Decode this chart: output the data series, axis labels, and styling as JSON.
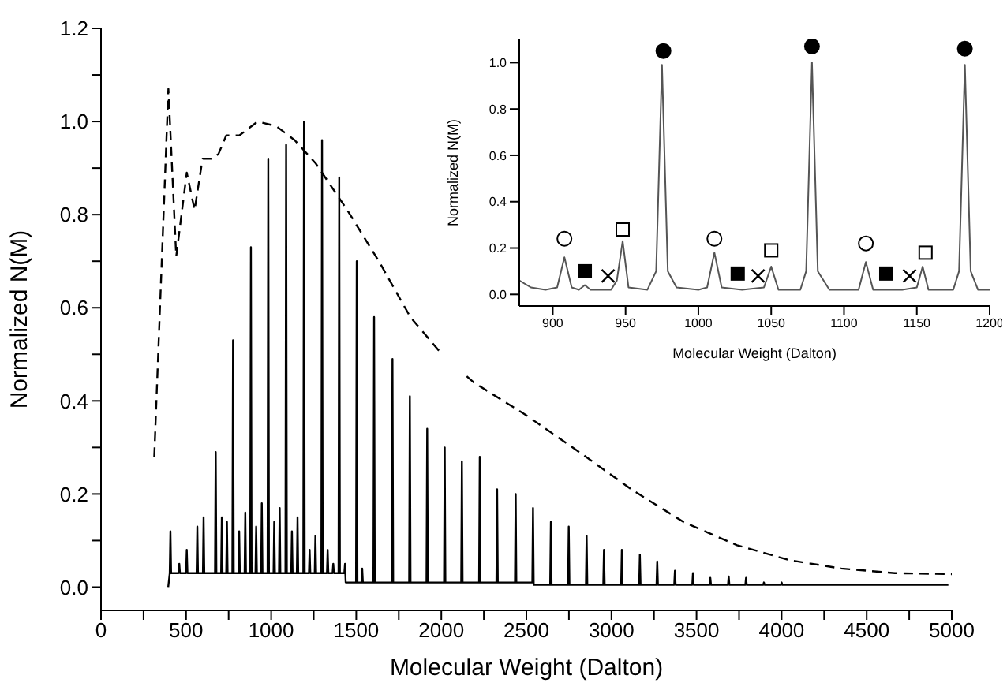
{
  "chart_data": [
    {
      "type": "line",
      "xlabel": "Molecular Weight (Dalton)",
      "ylabel": "Normalized N(M)",
      "xlim": [
        0,
        5000
      ],
      "xticks": [
        0,
        {
          "value": 250,
          "label": null
        },
        500,
        {
          "value": 750,
          "label": null
        },
        1000,
        {
          "value": 1250,
          "label": null
        },
        1500,
        {
          "value": 1750,
          "label": null
        },
        2000,
        {
          "value": 2250,
          "label": null
        },
        2500,
        {
          "value": 2750,
          "label": null
        },
        3000,
        {
          "value": 3250,
          "label": null
        },
        3500,
        {
          "value": 3750,
          "label": null
        },
        4000,
        {
          "value": 4250,
          "label": null
        },
        4500,
        {
          "value": 4750,
          "label": null
        },
        5000
      ],
      "ylim": [
        -0.05,
        1.2
      ],
      "yticks": [
        {
          "value": 0,
          "label": "0.0"
        },
        {
          "value": 0.1,
          "label": null
        },
        {
          "value": 0.2,
          "label": "0.2"
        },
        {
          "value": 0.3,
          "label": null
        },
        {
          "value": 0.4,
          "label": "0.4"
        },
        {
          "value": 0.5,
          "label": null
        },
        {
          "value": 0.6,
          "label": "0.6"
        },
        {
          "value": 0.7,
          "label": null
        },
        {
          "value": 0.8,
          "label": "0.8"
        },
        {
          "value": 0.9,
          "label": null
        },
        {
          "value": 1.0,
          "label": "1.0"
        },
        {
          "value": 1.1,
          "label": null
        },
        {
          "value": 1.2,
          "label": "1.2"
        }
      ],
      "series": [
        {
          "color": "#000000",
          "x": [
            395,
            404,
            408,
            412,
            456,
            460,
            464,
            500,
            504,
            508,
            562,
            566,
            570,
            599,
            603,
            607,
            670,
            674,
            678,
            706,
            710,
            714,
            736,
            740,
            744,
            772,
            776,
            780,
            808,
            812,
            816,
            844,
            848,
            852,
            877,
            881,
            885,
            908,
            912,
            916,
            941,
            945,
            949,
            979,
            983,
            987,
            1014,
            1018,
            1022,
            1046,
            1050,
            1054,
            1084,
            1088,
            1092,
            1118,
            1122,
            1126,
            1151,
            1155,
            1159,
            1189,
            1193,
            1197,
            1222,
            1226,
            1230,
            1256,
            1260,
            1264,
            1295,
            1299,
            1303,
            1328,
            1332,
            1336,
            1361,
            1365,
            1369,
            1396,
            1400,
            1404,
            1430,
            1434,
            1438,
            1499,
            1503,
            1507,
            1531,
            1535,
            1539,
            1601,
            1605,
            1609,
            1709,
            1713,
            1717,
            1811,
            1815,
            1819,
            1913,
            1917,
            1921,
            2016,
            2020,
            2024,
            2117,
            2121,
            2125,
            2222,
            2226,
            2230,
            2324,
            2328,
            2332,
            2433,
            2437,
            2441,
            2535,
            2539,
            2543,
            2640,
            2644,
            2648,
            2745,
            2749,
            2753,
            2850,
            2854,
            2858,
            2952,
            2956,
            2960,
            3057,
            3061,
            3065,
            3163,
            3167,
            3171,
            3265,
            3269,
            3273,
            3369,
            3373,
            3377,
            3475,
            3479,
            3483,
            3577,
            3581,
            3585,
            3685,
            3689,
            3693,
            3787,
            3791,
            3795,
            3892,
            3896,
            3900,
            3996,
            4000,
            4004,
            4980
          ],
          "values": [
            0.0,
            0.03,
            0.12,
            0.03,
            0.03,
            0.05,
            0.03,
            0.03,
            0.08,
            0.03,
            0.03,
            0.13,
            0.03,
            0.03,
            0.15,
            0.03,
            0.03,
            0.29,
            0.03,
            0.03,
            0.15,
            0.03,
            0.03,
            0.14,
            0.03,
            0.03,
            0.53,
            0.03,
            0.03,
            0.12,
            0.03,
            0.03,
            0.16,
            0.03,
            0.03,
            0.73,
            0.03,
            0.03,
            0.13,
            0.03,
            0.03,
            0.18,
            0.03,
            0.03,
            0.92,
            0.03,
            0.03,
            0.14,
            0.03,
            0.03,
            0.17,
            0.03,
            0.03,
            0.95,
            0.03,
            0.03,
            0.12,
            0.03,
            0.03,
            0.15,
            0.03,
            0.03,
            1.0,
            0.03,
            0.03,
            0.08,
            0.03,
            0.03,
            0.11,
            0.03,
            0.03,
            0.96,
            0.03,
            0.03,
            0.08,
            0.03,
            0.03,
            0.05,
            0.03,
            0.03,
            0.88,
            0.03,
            0.03,
            0.05,
            0.01,
            0.01,
            0.7,
            0.01,
            0.01,
            0.04,
            0.01,
            0.01,
            0.58,
            0.01,
            0.01,
            0.49,
            0.01,
            0.01,
            0.41,
            0.01,
            0.01,
            0.34,
            0.01,
            0.01,
            0.3,
            0.01,
            0.01,
            0.27,
            0.01,
            0.01,
            0.28,
            0.01,
            0.01,
            0.21,
            0.01,
            0.01,
            0.2,
            0.01,
            0.01,
            0.17,
            0.005,
            0.005,
            0.14,
            0.005,
            0.005,
            0.13,
            0.005,
            0.005,
            0.11,
            0.005,
            0.005,
            0.08,
            0.005,
            0.005,
            0.08,
            0.005,
            0.005,
            0.07,
            0.005,
            0.005,
            0.055,
            0.005,
            0.005,
            0.035,
            0.005,
            0.005,
            0.03,
            0.005,
            0.005,
            0.02,
            0.005,
            0.005,
            0.023,
            0.005,
            0.005,
            0.02,
            0.005,
            0.005,
            0.01,
            0.005,
            0.005,
            0.01,
            0.005,
            0.005
          ]
        },
        {
          "color": "#000000",
          "line_style": "dashed",
          "x": [
            313,
            396,
            442,
            504,
            550,
            597,
            649,
            690,
            736,
            813,
            921,
            1030,
            1138,
            1262,
            1447,
            1633,
            1818,
            2004,
            2189,
            2495,
            2811,
            3117,
            3423,
            3738,
            4045,
            4351,
            4666,
            5000
          ],
          "values": [
            0.28,
            1.07,
            0.71,
            0.89,
            0.81,
            0.92,
            0.92,
            0.93,
            0.97,
            0.97,
            1.0,
            0.99,
            0.96,
            0.91,
            0.81,
            0.7,
            0.58,
            0.5,
            0.44,
            0.37,
            0.29,
            0.21,
            0.14,
            0.09,
            0.058,
            0.04,
            0.03,
            0.028
          ]
        }
      ]
    },
    {
      "type": "line",
      "xlabel": "Molecular Weight (Dalton)",
      "ylabel": "Normalized N(M)",
      "xlim": [
        877,
        1200
      ],
      "xticks": [
        900,
        950,
        1000,
        1050,
        1100,
        1150,
        1200
      ],
      "ylim": [
        -0.05,
        1.1
      ],
      "yticks": [
        {
          "value": 0,
          "label": "0.0"
        },
        {
          "value": 0.2,
          "label": "0.2"
        },
        {
          "value": 0.4,
          "label": "0.4"
        },
        {
          "value": 0.6,
          "label": "0.6"
        },
        {
          "value": 0.8,
          "label": "0.8"
        },
        {
          "value": 1.0,
          "label": "1.0"
        }
      ],
      "series": [
        {
          "color": "#555555",
          "x": [
            877,
            885,
            895,
            903,
            908,
            913,
            918,
            922,
            926,
            940,
            944,
            948,
            952,
            965,
            971,
            975,
            979,
            985,
            1000,
            1006,
            1011,
            1016,
            1030,
            1045,
            1050,
            1055,
            1070,
            1074,
            1078,
            1082,
            1090,
            1110,
            1115,
            1120,
            1140,
            1150,
            1154,
            1158,
            1175,
            1179,
            1183,
            1187,
            1192,
            1200
          ],
          "values": [
            0.06,
            0.03,
            0.02,
            0.03,
            0.16,
            0.03,
            0.02,
            0.04,
            0.02,
            0.02,
            0.06,
            0.23,
            0.03,
            0.02,
            0.1,
            0.99,
            0.1,
            0.03,
            0.02,
            0.03,
            0.18,
            0.03,
            0.02,
            0.03,
            0.12,
            0.02,
            0.02,
            0.1,
            1.0,
            0.1,
            0.02,
            0.02,
            0.14,
            0.02,
            0.02,
            0.03,
            0.12,
            0.02,
            0.02,
            0.1,
            0.99,
            0.1,
            0.02,
            0.02
          ]
        },
        {
          "type": "scatter",
          "marker": "circle",
          "color": "#ffffff",
          "x": [
            908,
            1011,
            1115
          ],
          "values": [
            0.24,
            0.24,
            0.22
          ]
        },
        {
          "type": "scatter",
          "marker": "square",
          "color": "#000000",
          "x": [
            922,
            1027,
            1129
          ],
          "values": [
            0.1,
            0.09,
            0.09
          ]
        },
        {
          "type": "scatter",
          "marker": "cross",
          "color": "#000000",
          "x": [
            938,
            1041,
            1145
          ],
          "values": [
            0.08,
            0.08,
            0.08
          ]
        },
        {
          "type": "scatter",
          "marker": "square",
          "color": "#ffffff",
          "x": [
            948,
            1050,
            1156
          ],
          "values": [
            0.28,
            0.19,
            0.18
          ]
        },
        {
          "type": "scatter",
          "marker": "circle",
          "color": "#000000",
          "x": [
            976,
            1078,
            1183
          ],
          "values": [
            1.05,
            1.07,
            1.06
          ]
        }
      ]
    }
  ]
}
